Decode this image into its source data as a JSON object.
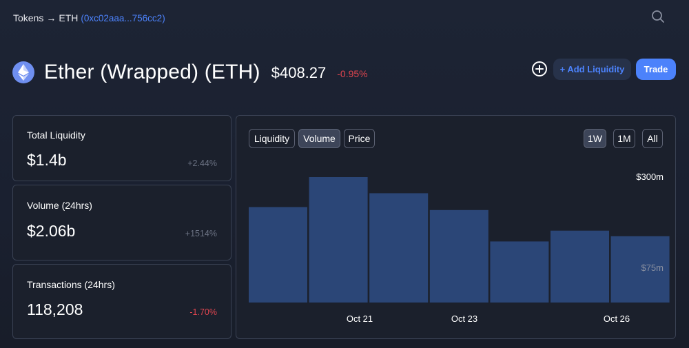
{
  "breadcrumb": {
    "root": "Tokens",
    "arrow": "→",
    "current": "ETH",
    "address": "(0xc02aaa...756cc2)"
  },
  "icons": {
    "search": "search-icon",
    "token_logo": "ethereum-icon",
    "watchlist": "plus-circle-icon"
  },
  "token": {
    "name": "Ether (Wrapped) (ETH)",
    "price": "$408.27",
    "change": "-0.95%"
  },
  "actions": {
    "add_liquidity": "+ Add Liquidity",
    "trade": "Trade"
  },
  "stats": [
    {
      "label": "Total Liquidity",
      "value": "$1.4b",
      "change": "+2.44%"
    },
    {
      "label": "Volume (24hrs)",
      "value": "$2.06b",
      "change": "+1514%"
    },
    {
      "label": "Transactions (24hrs)",
      "value": "118,208",
      "change": "-1.70%"
    }
  ],
  "chart_tabs": {
    "liquidity": "Liquidity",
    "volume": "Volume",
    "price": "Price",
    "active": "Volume"
  },
  "time_ranges": {
    "week": "1W",
    "month": "1M",
    "all": "All",
    "active": "1W"
  },
  "colors": {
    "accent": "#4c82fb",
    "negative": "#e0454f",
    "muted": "#6b7283",
    "bar": "#2b4677"
  },
  "chart_data": {
    "type": "bar",
    "x_tick_labels": [
      "Oct 21",
      "Oct 23",
      "Oct 26"
    ],
    "values": [
      255,
      335,
      292,
      247,
      163,
      192,
      177
    ],
    "y_tick_labels": [
      "$300m",
      "$75m"
    ],
    "ylim": [
      0,
      335
    ]
  }
}
